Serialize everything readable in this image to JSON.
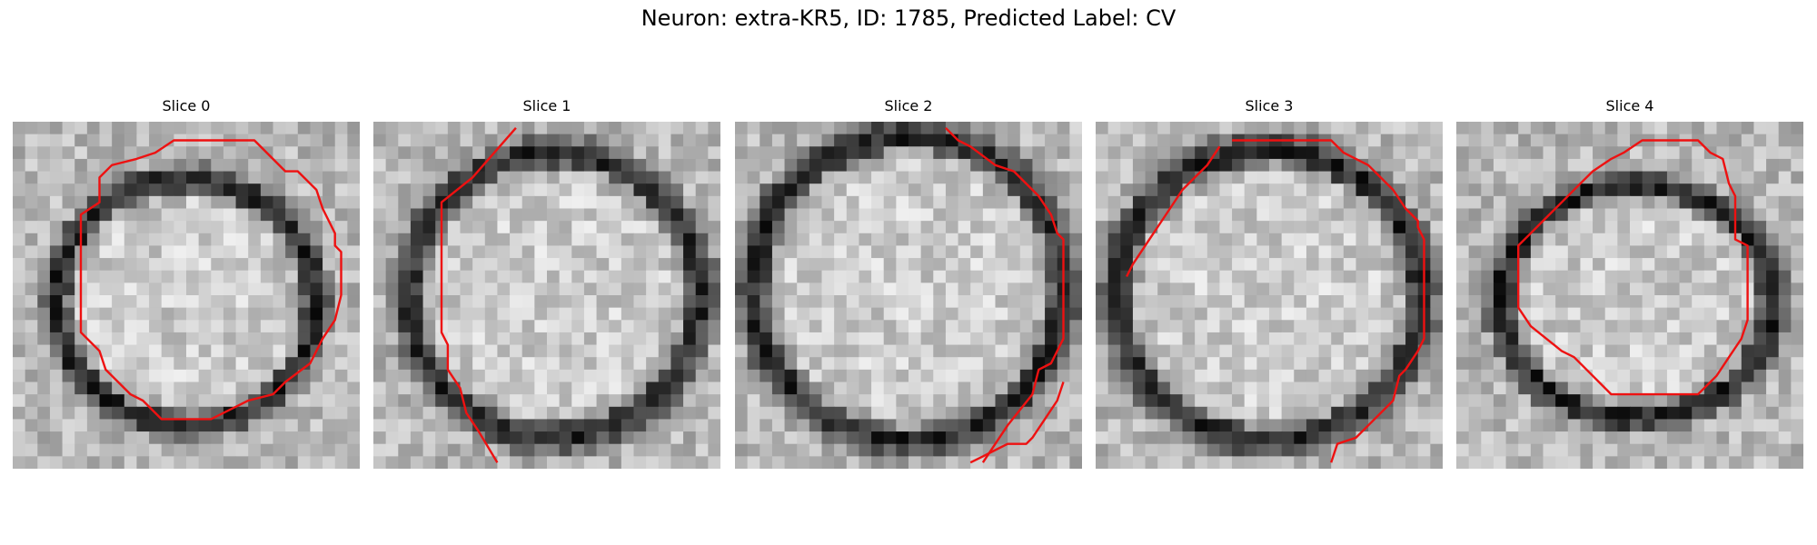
{
  "figure": {
    "title": "Neuron: extra-KR5, ID: 1785, Predicted Label: CV"
  },
  "colors": {
    "contour": "#ee1111",
    "background": "#ffffff"
  },
  "panels": [
    {
      "title": "Slice 0",
      "image": "grayscale-em-vesicle-slice-0",
      "contour": "closed"
    },
    {
      "title": "Slice 1",
      "image": "grayscale-em-vesicle-slice-1",
      "contour": "open"
    },
    {
      "title": "Slice 2",
      "image": "grayscale-em-vesicle-slice-2",
      "contour": "open"
    },
    {
      "title": "Slice 3",
      "image": "grayscale-em-vesicle-slice-3",
      "contour": "open"
    },
    {
      "title": "Slice 4",
      "image": "grayscale-em-vesicle-slice-4",
      "contour": "closed"
    }
  ]
}
